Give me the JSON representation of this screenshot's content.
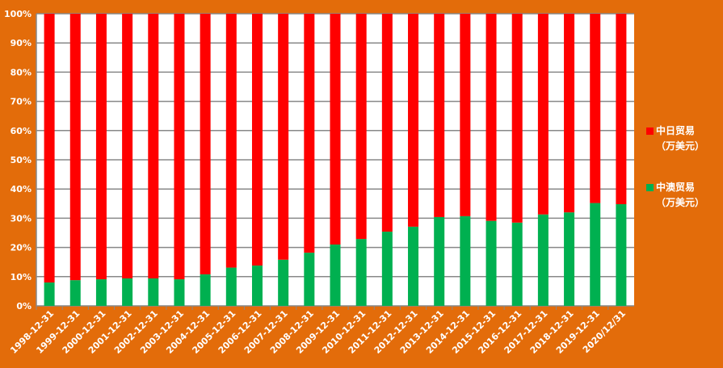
{
  "chart_data": {
    "type": "bar",
    "stacked": "percent",
    "categories": [
      "1998-12-31",
      "1999-12-31",
      "2000-12-31",
      "2001-12-31",
      "2002-12-31",
      "2003-12-31",
      "2004-12-31",
      "2005-12-31",
      "2006-12-31",
      "2007-12-31",
      "2008-12-31",
      "2009-12-31",
      "2010-12-31",
      "2011-12-31",
      "2012-12-31",
      "2013-12-31",
      "2014-12-31",
      "2015-12-31",
      "2016-12-31",
      "2017-12-31",
      "2018-12-31",
      "2019-12-31",
      "2020/12/31"
    ],
    "series": [
      {
        "name_line1": "中澳贸易",
        "name_line2": "（万美元）",
        "color": "#00B050",
        "values": [
          8.0,
          8.8,
          9.1,
          9.4,
          9.4,
          9.1,
          10.8,
          13.1,
          13.8,
          15.8,
          18.2,
          21.0,
          22.9,
          25.4,
          27.1,
          30.4,
          30.7,
          29.1,
          28.5,
          31.3,
          32.0,
          35.2,
          34.8
        ]
      },
      {
        "name_line1": "中日贸易",
        "name_line2": "（万美元）",
        "color": "#FF0000",
        "values": [
          92.0,
          91.2,
          90.9,
          90.6,
          90.6,
          90.9,
          89.2,
          86.9,
          86.2,
          84.2,
          81.8,
          79.0,
          77.1,
          74.6,
          72.9,
          69.6,
          69.3,
          70.9,
          71.5,
          68.7,
          68.0,
          64.8,
          65.2
        ]
      }
    ],
    "yticks": [
      "0%",
      "10%",
      "20%",
      "30%",
      "40%",
      "50%",
      "60%",
      "70%",
      "80%",
      "90%",
      "100%"
    ],
    "ylim": [
      0,
      100
    ],
    "grid": true,
    "legend_position": "right",
    "background": "#E36C0A",
    "plot_background": "#FFFFFF"
  }
}
